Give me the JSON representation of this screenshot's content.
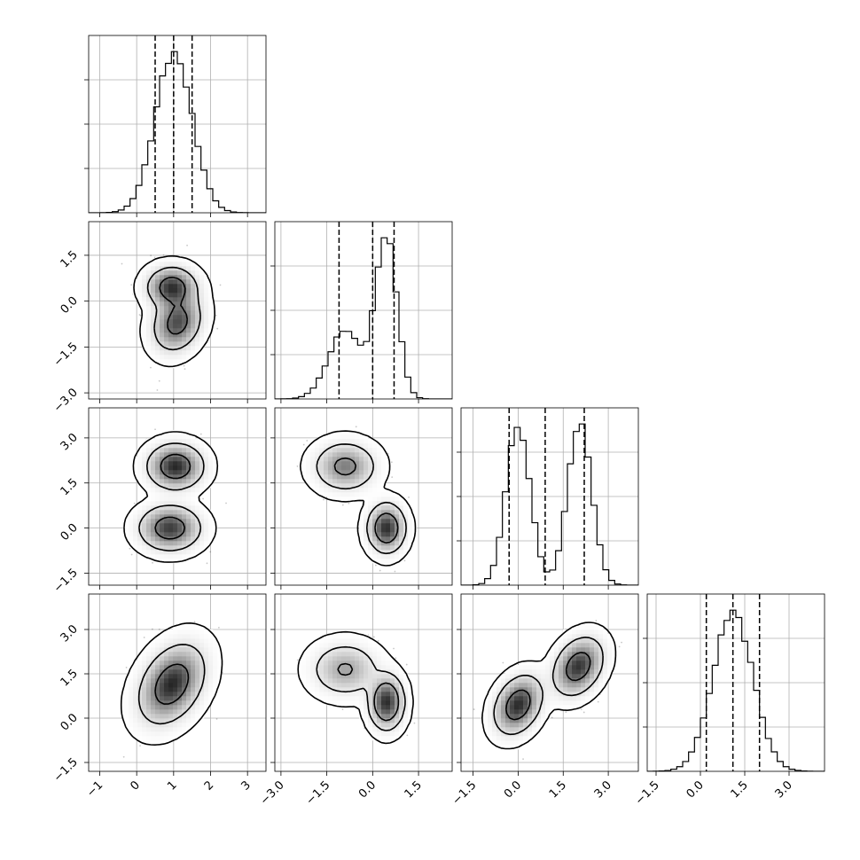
{
  "colors": {
    "background": "#ffffff",
    "line": "#000000",
    "grid": "#b0b0b0",
    "density_dark": "#262626",
    "density_light": "#e0e0e0",
    "fill_inner": "#ffffff"
  },
  "chart_data": {
    "type": "corner",
    "grid": true,
    "variables": [
      {
        "range": [
          -1.3,
          3.5
        ],
        "ticks": [
          "−1",
          "0",
          "1",
          "2",
          "3"
        ],
        "tick_values": [
          -1,
          0,
          1,
          2,
          3
        ],
        "mean": 1.0,
        "sd": 0.5,
        "quantiles": [
          0.5,
          1.0,
          1.5
        ]
      },
      {
        "range": [
          -3.2,
          2.6
        ],
        "ticks": [
          "−3.0",
          "−1.5",
          "0.0",
          "1.5"
        ],
        "tick_values": [
          -3.0,
          -1.5,
          0.0,
          1.5
        ],
        "mixture": [
          {
            "w": 0.4,
            "m": -0.9,
            "s": 0.55
          },
          {
            "w": 0.6,
            "m": 0.45,
            "s": 0.35
          }
        ],
        "quantiles": [
          -1.1,
          0.0,
          0.7
        ]
      },
      {
        "range": [
          -1.9,
          4.0
        ],
        "ticks": [
          "−1.5",
          "0.0",
          "1.5",
          "3.0"
        ],
        "tick_values": [
          -1.5,
          0.0,
          1.5,
          3.0
        ],
        "mixture": [
          {
            "w": 0.5,
            "m": 0.0,
            "s": 0.4
          },
          {
            "w": 0.5,
            "m": 2.05,
            "s": 0.4
          }
        ],
        "quantiles": [
          -0.3,
          0.9,
          2.2
        ]
      },
      {
        "range": [
          -1.8,
          4.2
        ],
        "ticks": [
          "−1.5",
          "0.0",
          "1.5",
          "3.0"
        ],
        "tick_values": [
          -1.5,
          0.0,
          1.5,
          3.0
        ],
        "mean": 1.1,
        "sd": 0.68,
        "quantiles": [
          0.2,
          1.1,
          2.0
        ]
      }
    ],
    "pairs": [
      {
        "row": 1,
        "col": 0,
        "blobs": [
          {
            "w": 0.45,
            "cx": 0.95,
            "cy": 0.45,
            "sx": 0.35,
            "sy": 0.35,
            "rho": 0.0
          },
          {
            "w": 0.55,
            "cx": 1.1,
            "cy": -0.7,
            "sx": 0.35,
            "sy": 0.5,
            "rho": 0.2
          }
        ]
      },
      {
        "row": 2,
        "col": 0,
        "blobs": [
          {
            "w": 0.5,
            "cx": 1.05,
            "cy": 2.05,
            "sx": 0.38,
            "sy": 0.38,
            "rho": 0.0
          },
          {
            "w": 0.5,
            "cx": 0.9,
            "cy": 0.0,
            "sx": 0.42,
            "sy": 0.38,
            "rho": 0.0
          }
        ]
      },
      {
        "row": 2,
        "col": 1,
        "blobs": [
          {
            "w": 0.5,
            "cx": -0.9,
            "cy": 2.05,
            "sx": 0.5,
            "sy": 0.4,
            "rho": 0.0
          },
          {
            "w": 0.5,
            "cx": 0.45,
            "cy": 0.0,
            "sx": 0.3,
            "sy": 0.4,
            "rho": 0.0
          }
        ]
      },
      {
        "row": 3,
        "col": 0,
        "blobs": [
          {
            "w": 1.0,
            "cx": 0.95,
            "cy": 1.15,
            "sx": 0.45,
            "sy": 0.68,
            "rho": 0.35
          }
        ]
      },
      {
        "row": 3,
        "col": 1,
        "blobs": [
          {
            "w": 0.45,
            "cx": -0.9,
            "cy": 1.65,
            "sx": 0.55,
            "sy": 0.45,
            "rho": 0.0
          },
          {
            "w": 0.55,
            "cx": 0.45,
            "cy": 0.55,
            "sx": 0.28,
            "sy": 0.45,
            "rho": 0.0
          }
        ]
      },
      {
        "row": 3,
        "col": 2,
        "blobs": [
          {
            "w": 0.5,
            "cx": 0.0,
            "cy": 0.45,
            "sx": 0.4,
            "sy": 0.5,
            "rho": 0.3
          },
          {
            "w": 0.5,
            "cx": 2.0,
            "cy": 1.75,
            "sx": 0.42,
            "sy": 0.5,
            "rho": 0.3
          }
        ]
      }
    ],
    "hist_bins": 30,
    "contour_levels": [
      0.39,
      0.86,
      0.99
    ]
  }
}
